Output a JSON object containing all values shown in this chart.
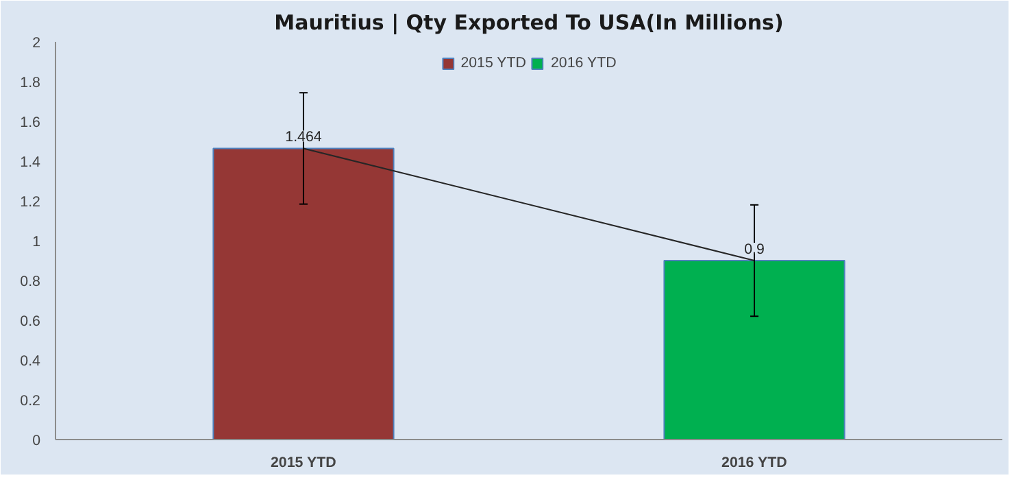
{
  "chart_data": {
    "type": "bar",
    "title": "Mauritius | Qty Exported To USA(In Millions)",
    "categories": [
      "2015 YTD",
      "2016 YTD"
    ],
    "series": [
      {
        "name": "2015 YTD",
        "color": "#953735",
        "values": [
          1.464,
          null
        ],
        "errors": [
          0.28,
          null
        ],
        "value_labels": [
          "1.464",
          null
        ]
      },
      {
        "name": "2016 YTD",
        "color": "#00b050",
        "values": [
          null,
          0.9
        ],
        "errors": [
          null,
          0.28
        ],
        "value_labels": [
          null,
          "0.9"
        ]
      },
      {
        "type": "line",
        "values": [
          1.464,
          0.9
        ],
        "color": "#262626"
      }
    ],
    "ylim": [
      0,
      2
    ],
    "yticks": [
      0,
      0.2,
      0.4,
      0.6,
      0.8,
      1,
      1.2,
      1.4,
      1.6,
      1.8,
      2
    ],
    "legend": "top"
  }
}
